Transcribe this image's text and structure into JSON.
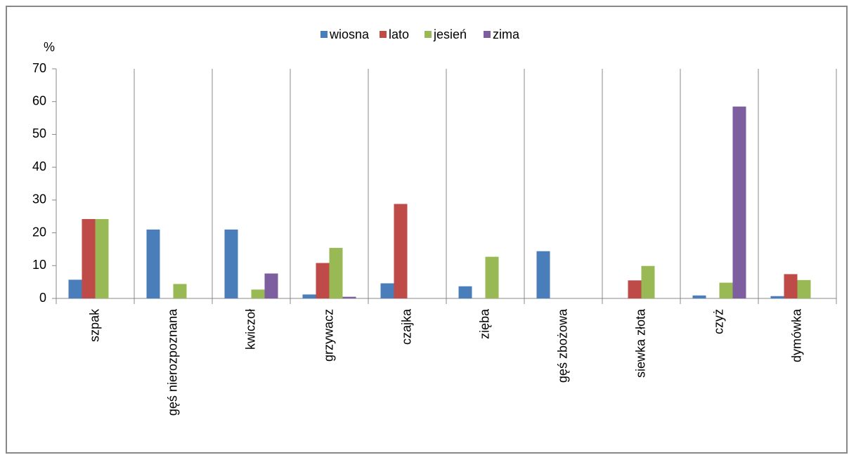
{
  "chart_data": {
    "type": "bar",
    "y_label": "%",
    "categories": [
      "szpak",
      "gęś nierozpoznana",
      "kwiczoł",
      "grzywacz",
      "czajka",
      "zięba",
      "gęś zbożowa",
      "siewka złota",
      "czyż",
      "dymówka"
    ],
    "series": [
      {
        "name": "wiosna",
        "color": "#4a7ebb",
        "values": [
          5.7,
          21,
          21,
          1.2,
          4.6,
          3.7,
          14.4,
          0,
          0.9,
          0.7
        ]
      },
      {
        "name": "lato",
        "color": "#be4b48",
        "values": [
          24.2,
          0,
          0,
          10.8,
          28.8,
          0,
          0,
          5.5,
          0,
          7.4
        ]
      },
      {
        "name": "jesień",
        "color": "#98b954",
        "values": [
          24.2,
          4.4,
          2.7,
          15.4,
          0,
          12.7,
          0,
          9.9,
          4.8,
          5.6
        ]
      },
      {
        "name": "zima",
        "color": "#7d5fa0",
        "values": [
          0,
          0,
          7.6,
          0.5,
          0,
          0,
          0,
          0,
          58.5,
          0
        ]
      }
    ],
    "ylim": [
      0,
      70
    ],
    "yticks": [
      0,
      10,
      20,
      30,
      40,
      50,
      60,
      70
    ],
    "legend": "top"
  }
}
